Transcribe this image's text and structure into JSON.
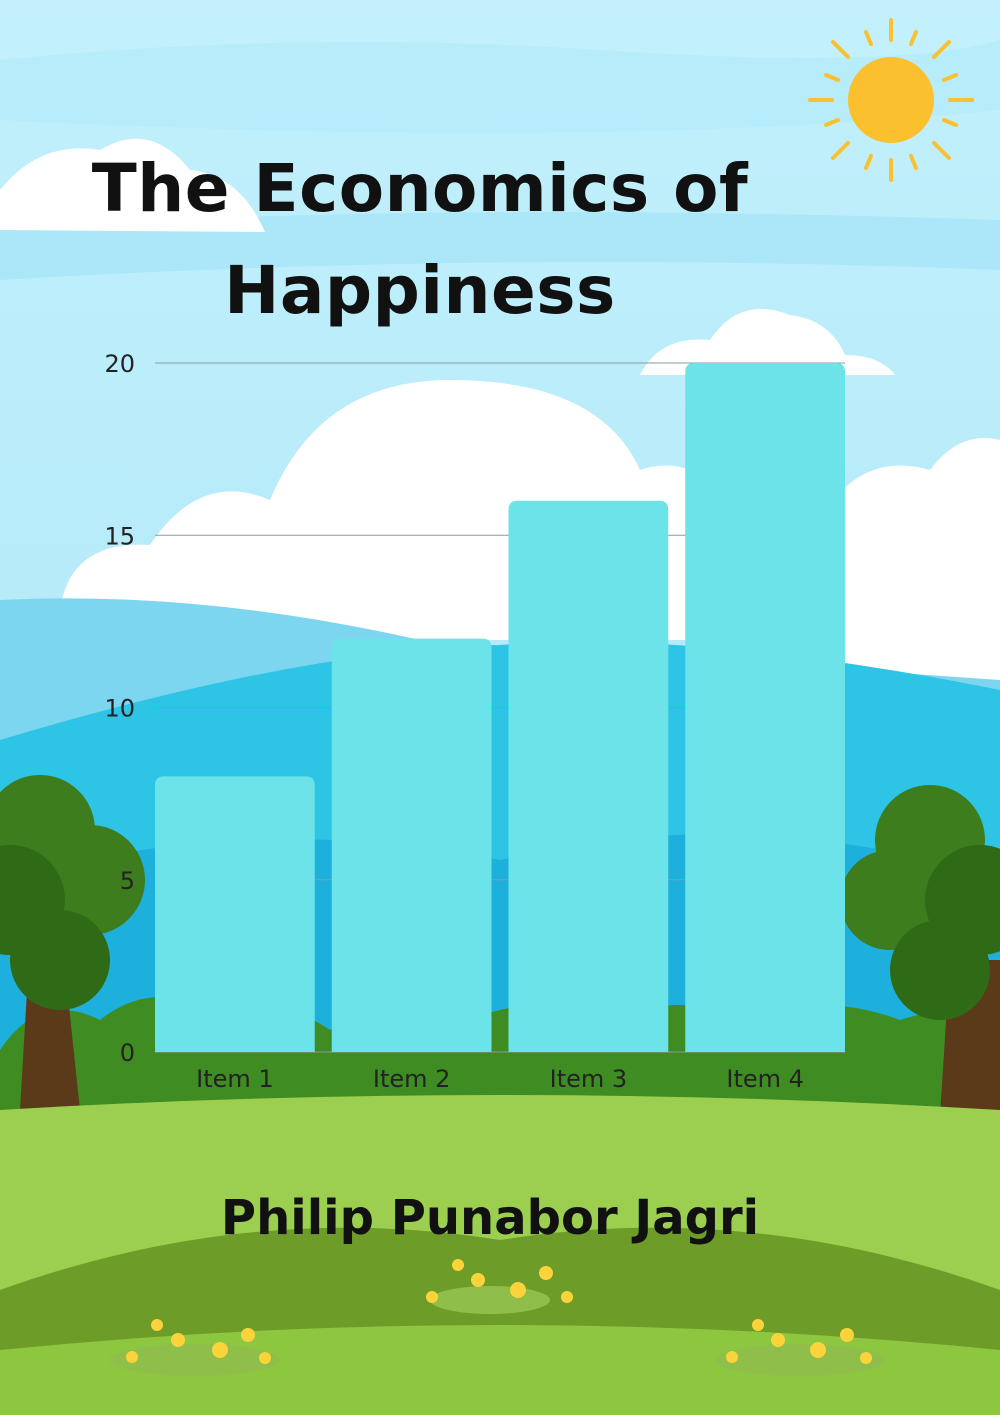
{
  "cover": {
    "title_line1": "The Economics of",
    "title_line2": "Happiness",
    "author": "Philip Punabor Jagri"
  },
  "colors": {
    "bar": "#6ce3e8",
    "sky": "#b3ecfa",
    "grass": "#9ccf4f",
    "sun": "#fbc02d"
  },
  "chart_data": {
    "type": "bar",
    "categories": [
      "Item 1",
      "Item 2",
      "Item 3",
      "Item 4"
    ],
    "values": [
      8,
      12,
      16,
      20
    ],
    "yticks": [
      "0",
      "5",
      "10",
      "15",
      "20"
    ],
    "ylim": [
      0,
      20
    ],
    "grid": true,
    "title": "",
    "xlabel": "",
    "ylabel": ""
  }
}
